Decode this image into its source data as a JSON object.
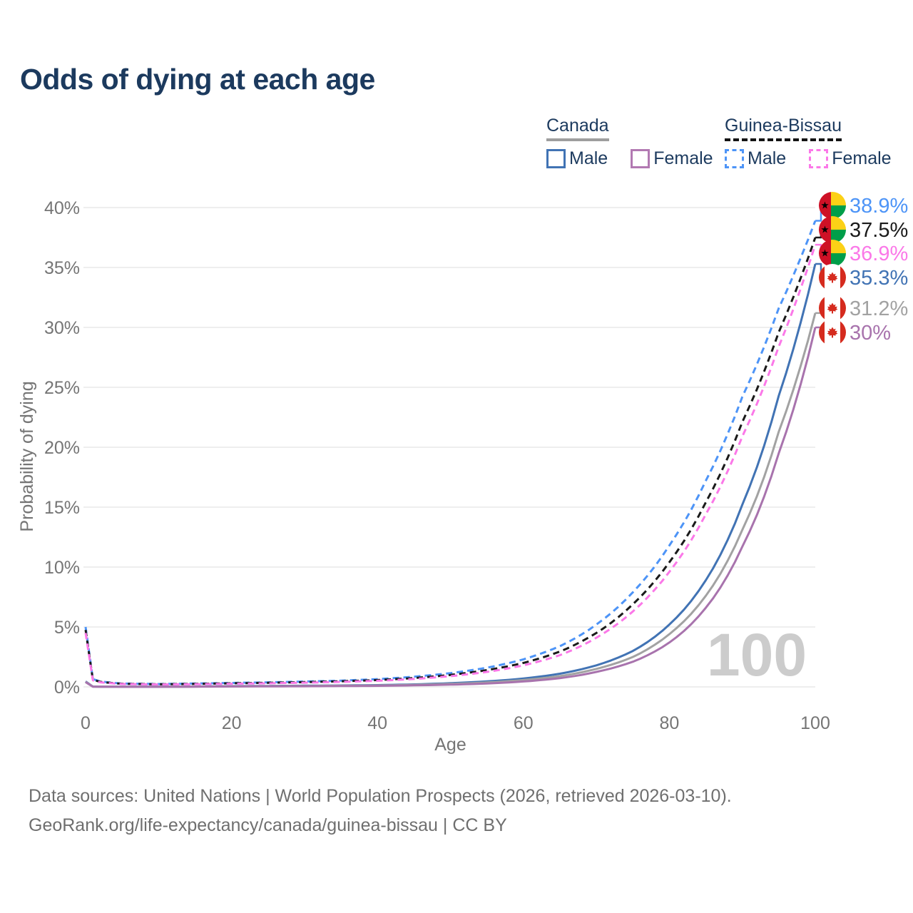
{
  "title": "Odds of dying at each age",
  "legend": {
    "groups": [
      {
        "country": "Canada",
        "underline_style": "solid",
        "underline_color": "#9e9e9e",
        "items": [
          {
            "label": "Male",
            "color": "#4173b4",
            "dash": false
          },
          {
            "label": "Female",
            "color": "#b279b2",
            "dash": false
          }
        ]
      },
      {
        "country": "Guinea-Bissau",
        "underline_style": "dashed",
        "underline_color": "#141414",
        "items": [
          {
            "label": "Male",
            "color": "#4d94f7",
            "dash": true
          },
          {
            "label": "Female",
            "color": "#fb78e8",
            "dash": true
          }
        ]
      }
    ]
  },
  "chart_data": {
    "type": "line",
    "title": "Odds of dying at each age",
    "xlabel": "Age",
    "ylabel": "Probability of dying",
    "x_ticks": [
      0,
      20,
      40,
      60,
      80,
      100
    ],
    "y_tick_labels": [
      "0%",
      "5%",
      "10%",
      "15%",
      "20%",
      "25%",
      "30%",
      "35%",
      "40%"
    ],
    "xlim": [
      0,
      100
    ],
    "ylim_percent": [
      0,
      40
    ],
    "grid": "horizontal",
    "legend_position": "top-right",
    "age_counter": "100",
    "ages": [
      0,
      1,
      2,
      5,
      10,
      15,
      20,
      25,
      30,
      35,
      40,
      45,
      50,
      55,
      60,
      65,
      70,
      75,
      80,
      85,
      90,
      95,
      100
    ],
    "series": [
      {
        "name": "Guinea-Bissau Male",
        "color": "#4d94f7",
        "dash": true,
        "end_label": "38.9%",
        "flag": "guinea-bissau-flag-icon",
        "values": [
          5.0,
          0.65,
          0.45,
          0.28,
          0.24,
          0.28,
          0.33,
          0.38,
          0.45,
          0.52,
          0.65,
          0.85,
          1.15,
          1.6,
          2.3,
          3.4,
          5.2,
          7.9,
          11.8,
          17.2,
          24.2,
          31.6,
          38.9
        ]
      },
      {
        "name": "Guinea-Bissau",
        "color": "#1a1a1a",
        "dash": true,
        "end_label": "37.5%",
        "flag": "guinea-bissau-flag-icon",
        "values": [
          4.75,
          0.6,
          0.42,
          0.26,
          0.22,
          0.25,
          0.3,
          0.34,
          0.4,
          0.47,
          0.57,
          0.74,
          1.0,
          1.4,
          2.0,
          2.95,
          4.5,
          6.9,
          10.4,
          15.4,
          22.1,
          29.6,
          37.5
        ]
      },
      {
        "name": "Guinea-Bissau Female",
        "color": "#fb78e8",
        "dash": true,
        "end_label": "36.9%",
        "flag": "guinea-bissau-flag-icon",
        "values": [
          4.5,
          0.55,
          0.38,
          0.24,
          0.2,
          0.22,
          0.26,
          0.3,
          0.35,
          0.42,
          0.51,
          0.66,
          0.9,
          1.25,
          1.8,
          2.65,
          4.1,
          6.3,
          9.6,
          14.4,
          20.9,
          28.4,
          36.9
        ]
      },
      {
        "name": "Canada Male",
        "color": "#4173b4",
        "dash": false,
        "end_label": "35.3%",
        "flag": "canada-flag-icon",
        "values": [
          0.45,
          0.03,
          0.02,
          0.01,
          0.01,
          0.03,
          0.06,
          0.08,
          0.1,
          0.12,
          0.15,
          0.21,
          0.31,
          0.46,
          0.7,
          1.1,
          1.8,
          3.0,
          5.2,
          8.9,
          15.2,
          24.3,
          35.3
        ]
      },
      {
        "name": "Canada",
        "color": "#a2a2a2",
        "dash": false,
        "end_label": "31.2%",
        "flag": "canada-flag-icon",
        "values": [
          0.42,
          0.025,
          0.018,
          0.01,
          0.01,
          0.025,
          0.045,
          0.06,
          0.075,
          0.095,
          0.12,
          0.17,
          0.25,
          0.37,
          0.57,
          0.9,
          1.5,
          2.5,
          4.4,
          7.6,
          13.1,
          21.3,
          31.2
        ]
      },
      {
        "name": "Canada Female",
        "color": "#a873ad",
        "dash": false,
        "end_label": "30%",
        "flag": "canada-flag-icon",
        "values": [
          0.4,
          0.02,
          0.015,
          0.008,
          0.008,
          0.02,
          0.035,
          0.045,
          0.055,
          0.07,
          0.09,
          0.13,
          0.19,
          0.28,
          0.45,
          0.73,
          1.25,
          2.1,
          3.7,
          6.6,
          11.7,
          19.5,
          30.0
        ]
      }
    ],
    "colors": {
      "grid": "#e9e9e9",
      "tick_text": "#757575",
      "watermark": "#cccccc",
      "title_text": "#1c3a5e"
    }
  },
  "footer": {
    "line1": "Data sources: United Nations | World Population Prospects (2026, retrieved 2026-03-10).",
    "line2": "GeoRank.org/life-expectancy/canada/guinea-bissau | CC BY"
  }
}
